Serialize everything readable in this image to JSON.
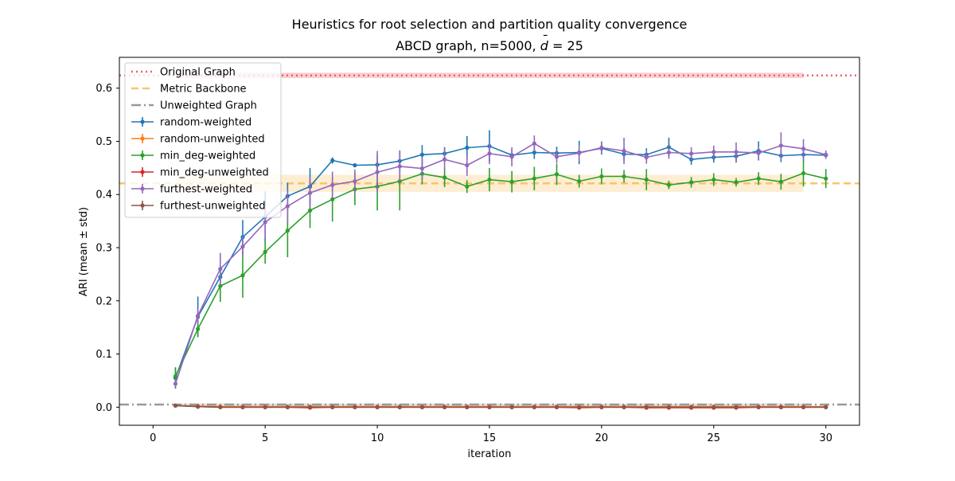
{
  "chart_data": {
    "type": "line",
    "title_line1": "Heuristics for root selection and partition quality convergence",
    "title_line2_prefix": "ABCD graph, n=5000, ",
    "title_line2_d": "d",
    "title_line2_bar": "¯",
    "title_line2_suffix": " = 25",
    "xlabel": "iteration",
    "ylabel": "ARI (mean ± std)",
    "xlim": [
      -1.5,
      31.5
    ],
    "ylim": [
      -0.034,
      0.658
    ],
    "xticks": [
      0,
      5,
      10,
      15,
      20,
      25,
      30
    ],
    "xtick_labels": [
      "0",
      "5",
      "10",
      "15",
      "20",
      "25",
      "30"
    ],
    "yticks": [
      0.0,
      0.1,
      0.2,
      0.3,
      0.4,
      0.5,
      0.6
    ],
    "ytick_labels": [
      "0.0",
      "0.1",
      "0.2",
      "0.3",
      "0.4",
      "0.5",
      "0.6"
    ],
    "grid": false,
    "legend_position": "upper-left",
    "x": [
      1,
      2,
      3,
      4,
      5,
      6,
      7,
      8,
      9,
      10,
      11,
      12,
      13,
      14,
      15,
      16,
      17,
      18,
      19,
      20,
      21,
      22,
      23,
      24,
      25,
      26,
      27,
      28,
      29,
      30
    ],
    "reference_lines": [
      {
        "name": "Original Graph",
        "style": "dotted",
        "color": "#f0606a",
        "value": 0.624,
        "band": [
          0.619,
          0.629
        ],
        "band_x": [
          1,
          29
        ]
      },
      {
        "name": "Metric Backbone",
        "style": "dashed",
        "color": "#f9c46a",
        "value": 0.421,
        "band": [
          0.405,
          0.437
        ],
        "band_x": [
          1,
          29
        ]
      },
      {
        "name": "Unweighted Graph",
        "style": "dashdot",
        "color": "#999999",
        "value": 0.005,
        "band": [
          0.003,
          0.007
        ],
        "band_x": [
          1,
          29
        ]
      }
    ],
    "series": [
      {
        "name": "random-weighted",
        "color": "#1f77b4",
        "values": [
          0.055,
          0.17,
          0.245,
          0.32,
          0.358,
          0.397,
          0.415,
          0.464,
          0.455,
          0.456,
          0.463,
          0.475,
          0.477,
          0.488,
          0.491,
          0.474,
          0.479,
          0.478,
          0.479,
          0.487,
          0.476,
          0.475,
          0.489,
          0.466,
          0.47,
          0.472,
          0.482,
          0.473,
          0.475,
          0.474
        ],
        "errors": [
          0.02,
          0.038,
          0.02,
          0.032,
          0.048,
          0.025,
          0.035,
          0.006,
          0.002,
          0.018,
          0.02,
          0.018,
          0.012,
          0.022,
          0.03,
          0.012,
          0.012,
          0.012,
          0.022,
          0.012,
          0.012,
          0.012,
          0.018,
          0.01,
          0.01,
          0.012,
          0.018,
          0.012,
          0.012,
          0.006
        ]
      },
      {
        "name": "random-unweighted",
        "color": "#ff7f0e",
        "values": [
          0.003,
          0.002,
          0.001,
          0.001,
          0.001,
          0.001,
          0.001,
          0.001,
          0.001,
          0.001,
          0.001,
          0.001,
          0.001,
          0.001,
          0.001,
          0.001,
          0.001,
          0.001,
          0.001,
          0.001,
          0.001,
          0.001,
          0.001,
          0.001,
          0.001,
          0.001,
          0.001,
          0.001,
          0.001,
          0.001
        ],
        "errors": [
          0.002,
          0.002,
          0.002,
          0.002,
          0.002,
          0.002,
          0.002,
          0.002,
          0.002,
          0.002,
          0.002,
          0.002,
          0.002,
          0.002,
          0.002,
          0.002,
          0.002,
          0.002,
          0.002,
          0.002,
          0.002,
          0.002,
          0.002,
          0.002,
          0.002,
          0.002,
          0.002,
          0.002,
          0.002,
          0.002
        ]
      },
      {
        "name": "min_deg-weighted",
        "color": "#2ca02c",
        "values": [
          0.058,
          0.147,
          0.228,
          0.248,
          0.292,
          0.332,
          0.37,
          0.391,
          0.41,
          0.415,
          0.425,
          0.439,
          0.432,
          0.415,
          0.428,
          0.424,
          0.43,
          0.438,
          0.425,
          0.434,
          0.434,
          0.428,
          0.418,
          0.423,
          0.428,
          0.423,
          0.43,
          0.424,
          0.44,
          0.43
        ],
        "errors": [
          0.015,
          0.015,
          0.03,
          0.042,
          0.022,
          0.05,
          0.033,
          0.042,
          0.03,
          0.045,
          0.055,
          0.02,
          0.018,
          0.012,
          0.022,
          0.02,
          0.022,
          0.02,
          0.012,
          0.015,
          0.012,
          0.02,
          0.008,
          0.01,
          0.012,
          0.008,
          0.012,
          0.015,
          0.025,
          0.018
        ]
      },
      {
        "name": "min_deg-unweighted",
        "color": "#d62728",
        "values": [
          0.003,
          0.001,
          0.0,
          0.0,
          0.0,
          0.0,
          -0.001,
          0.0,
          0.0,
          0.0,
          0.0,
          0.0,
          0.0,
          0.0,
          0.0,
          0.0,
          0.0,
          0.0,
          -0.001,
          0.0,
          0.0,
          -0.001,
          -0.001,
          -0.001,
          -0.001,
          -0.001,
          0.0,
          0.0,
          0.0,
          0.0
        ],
        "errors": [
          0.002,
          0.002,
          0.002,
          0.002,
          0.002,
          0.002,
          0.002,
          0.002,
          0.002,
          0.002,
          0.002,
          0.002,
          0.002,
          0.002,
          0.002,
          0.002,
          0.002,
          0.002,
          0.002,
          0.002,
          0.002,
          0.002,
          0.002,
          0.002,
          0.002,
          0.002,
          0.002,
          0.002,
          0.002,
          0.002
        ]
      },
      {
        "name": "furthest-weighted",
        "color": "#9467bd",
        "values": [
          0.044,
          0.172,
          0.26,
          0.302,
          0.348,
          0.378,
          0.403,
          0.418,
          0.425,
          0.442,
          0.453,
          0.449,
          0.466,
          0.455,
          0.477,
          0.471,
          0.496,
          0.471,
          0.478,
          0.488,
          0.482,
          0.47,
          0.479,
          0.477,
          0.48,
          0.48,
          0.478,
          0.492,
          0.486,
          0.475
        ],
        "errors": [
          0.008,
          0.015,
          0.03,
          0.02,
          0.03,
          0.03,
          0.03,
          0.025,
          0.022,
          0.04,
          0.03,
          0.02,
          0.02,
          0.02,
          0.02,
          0.018,
          0.015,
          0.012,
          0.015,
          0.012,
          0.025,
          0.012,
          0.012,
          0.012,
          0.012,
          0.018,
          0.012,
          0.025,
          0.018,
          0.008
        ]
      },
      {
        "name": "furthest-unweighted",
        "color": "#8c564b",
        "values": [
          0.003,
          0.001,
          0.0,
          0.0,
          0.0,
          0.0,
          0.0,
          0.0,
          0.0,
          0.0,
          0.0,
          0.0,
          0.0,
          0.0,
          0.0,
          0.0,
          0.0,
          0.0,
          0.0,
          0.0,
          0.0,
          0.0,
          0.0,
          0.0,
          0.0,
          0.0,
          0.0,
          0.0,
          0.0,
          0.0
        ],
        "errors": [
          0.002,
          0.002,
          0.002,
          0.002,
          0.002,
          0.002,
          0.002,
          0.002,
          0.002,
          0.002,
          0.002,
          0.002,
          0.002,
          0.002,
          0.002,
          0.002,
          0.002,
          0.002,
          0.002,
          0.002,
          0.002,
          0.002,
          0.002,
          0.002,
          0.002,
          0.002,
          0.002,
          0.002,
          0.002,
          0.002
        ]
      }
    ]
  }
}
